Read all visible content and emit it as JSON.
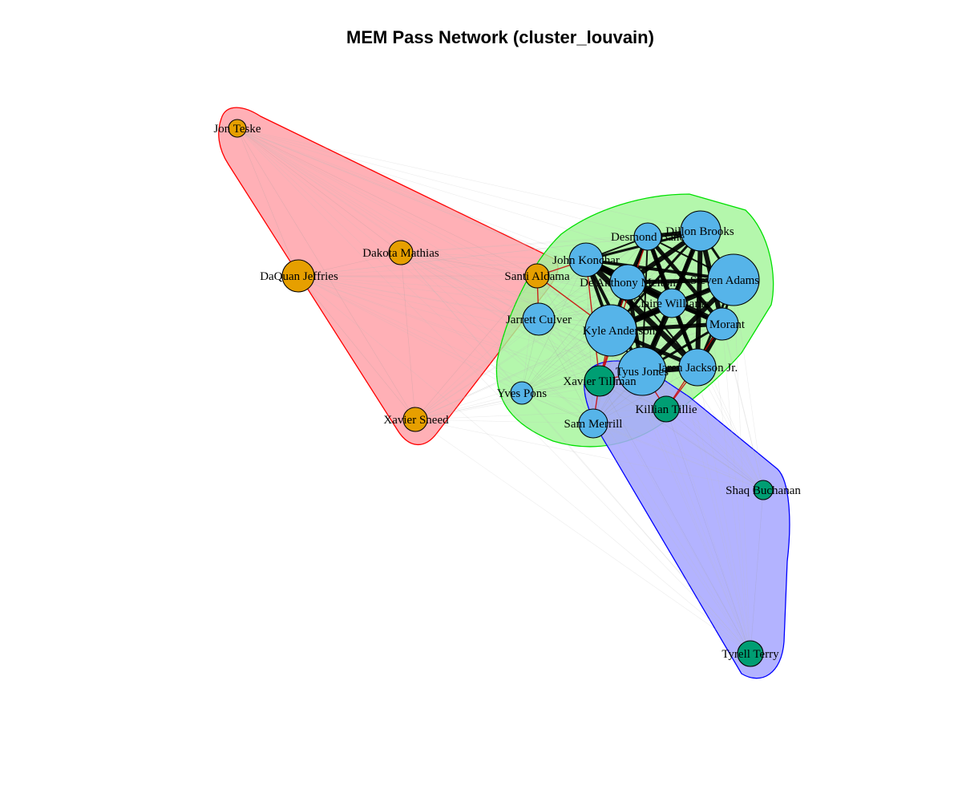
{
  "title": "MEM Pass Network (cluster_louvain)",
  "colors": {
    "cluster_1": "#E69F00",
    "cluster_2": "#56B4E9",
    "cluster_3": "#009E73",
    "hull_fill_1": "#FF9FA6",
    "hull_line_1": "#FF0000",
    "hull_fill_2": "#A3F59A",
    "hull_line_2": "#00E000",
    "hull_fill_3": "#A6A6FF",
    "hull_line_3": "#0000FF",
    "edge_inside": "#000000",
    "edge_between": "#CC0000"
  },
  "clusters": [
    {
      "id": 1,
      "members": [
        "Jon Teske",
        "DaQuan Jeffries",
        "Dakota Mathias",
        "Santi Aldama",
        "Xavier Sneed"
      ]
    },
    {
      "id": 2,
      "members": [
        "Desmond Bane",
        "Dillon Brooks",
        "John Konchar",
        "De'Anthony Melton",
        "Steven Adams",
        "Ziaire Williams",
        "Jarrett Culver",
        "Kyle Anderson",
        "Morant",
        "Tyus Jones",
        "Jaren Jackson Jr.",
        "Yves Pons",
        "Sam Merrill"
      ]
    },
    {
      "id": 3,
      "members": [
        "Xavier Tillman",
        "Killian Tillie",
        "Shaq Buchanan",
        "Tyrell Terry"
      ]
    }
  ],
  "nodes": [
    {
      "id": "Jon Teske",
      "label": "Jon Teske",
      "cluster": 1
    },
    {
      "id": "DaQuan Jeffries",
      "label": "DaQuan Jeffries",
      "cluster": 1
    },
    {
      "id": "Dakota Mathias",
      "label": "Dakota Mathias",
      "cluster": 1
    },
    {
      "id": "Santi Aldama",
      "label": "Santi Aldama",
      "cluster": 1
    },
    {
      "id": "Xavier Sneed",
      "label": "Xavier Sneed",
      "cluster": 1
    },
    {
      "id": "Desmond Bane",
      "label": "Desmond Bane",
      "cluster": 2
    },
    {
      "id": "Dillon Brooks",
      "label": "Dillon Brooks",
      "cluster": 2
    },
    {
      "id": "John Konchar",
      "label": "John Konchar",
      "cluster": 2
    },
    {
      "id": "De'Anthony Melton",
      "label": "De'Anthony Melton",
      "cluster": 2
    },
    {
      "id": "Steven Adams",
      "label": "Steven Adams",
      "cluster": 2
    },
    {
      "id": "Ziaire Williams",
      "label": "Ziaire Williams",
      "cluster": 2
    },
    {
      "id": "Jarrett Culver",
      "label": "Jarrett Culver",
      "cluster": 2
    },
    {
      "id": "Kyle Anderson",
      "label": "Kyle Anderson",
      "cluster": 2
    },
    {
      "id": "Morant",
      "label": "Morant",
      "cluster": 2
    },
    {
      "id": "Tyus Jones",
      "label": "Tyus Jones",
      "cluster": 2
    },
    {
      "id": "Jaren Jackson Jr.",
      "label": "Jaren Jackson Jr.",
      "cluster": 2
    },
    {
      "id": "Yves Pons",
      "label": "Yves Pons",
      "cluster": 2
    },
    {
      "id": "Sam Merrill",
      "label": "Sam Merrill",
      "cluster": 2
    },
    {
      "id": "Xavier Tillman",
      "label": "Xavier Tillman",
      "cluster": 3
    },
    {
      "id": "Killian Tillie",
      "label": "Killian Tillie",
      "cluster": 3
    },
    {
      "id": "Shaq Buchanan",
      "label": "Shaq Buchanan",
      "cluster": 3
    },
    {
      "id": "Tyrell Terry",
      "label": "Tyrell Terry",
      "cluster": 3
    }
  ]
}
